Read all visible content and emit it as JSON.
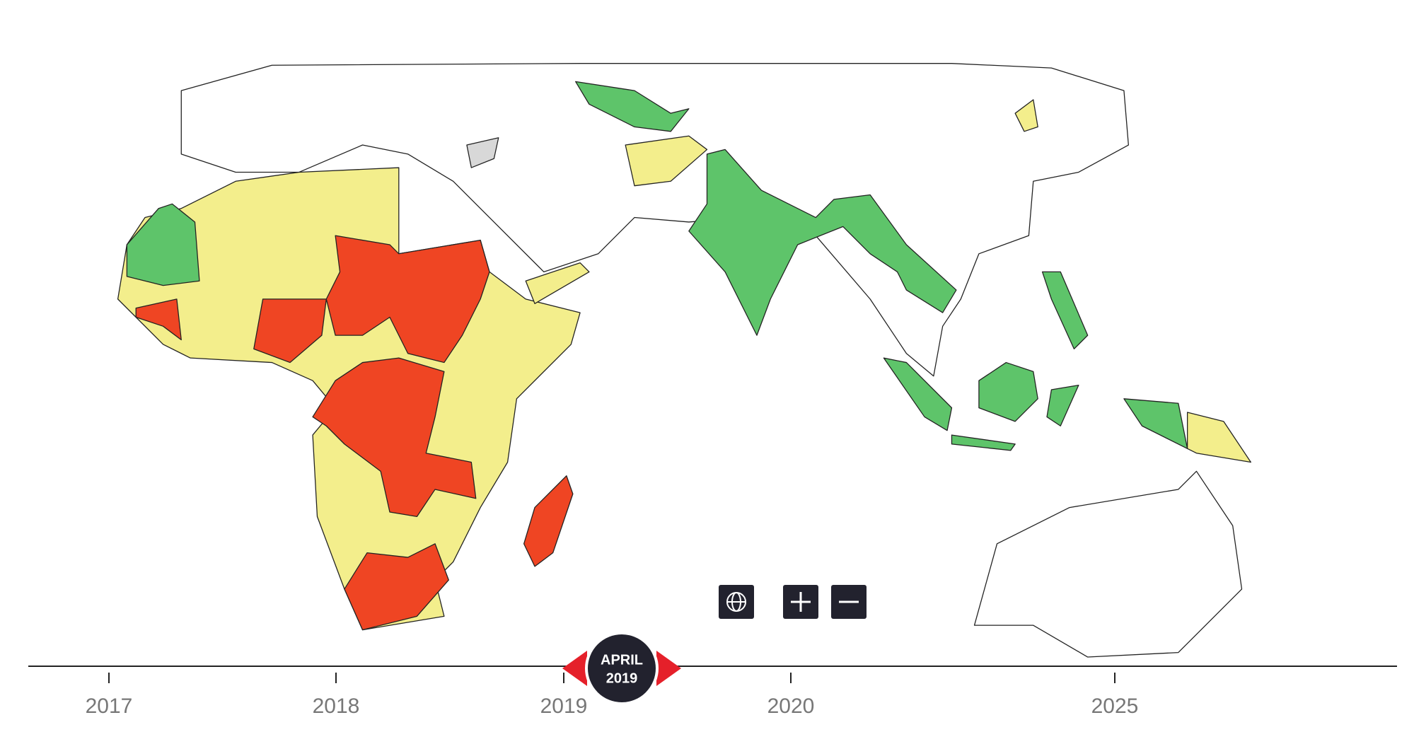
{
  "timeline": {
    "ticks": [
      "2017",
      "2018",
      "2019",
      "2020",
      "2025"
    ],
    "current": {
      "month": "APRIL",
      "year": "2019"
    }
  }
}
